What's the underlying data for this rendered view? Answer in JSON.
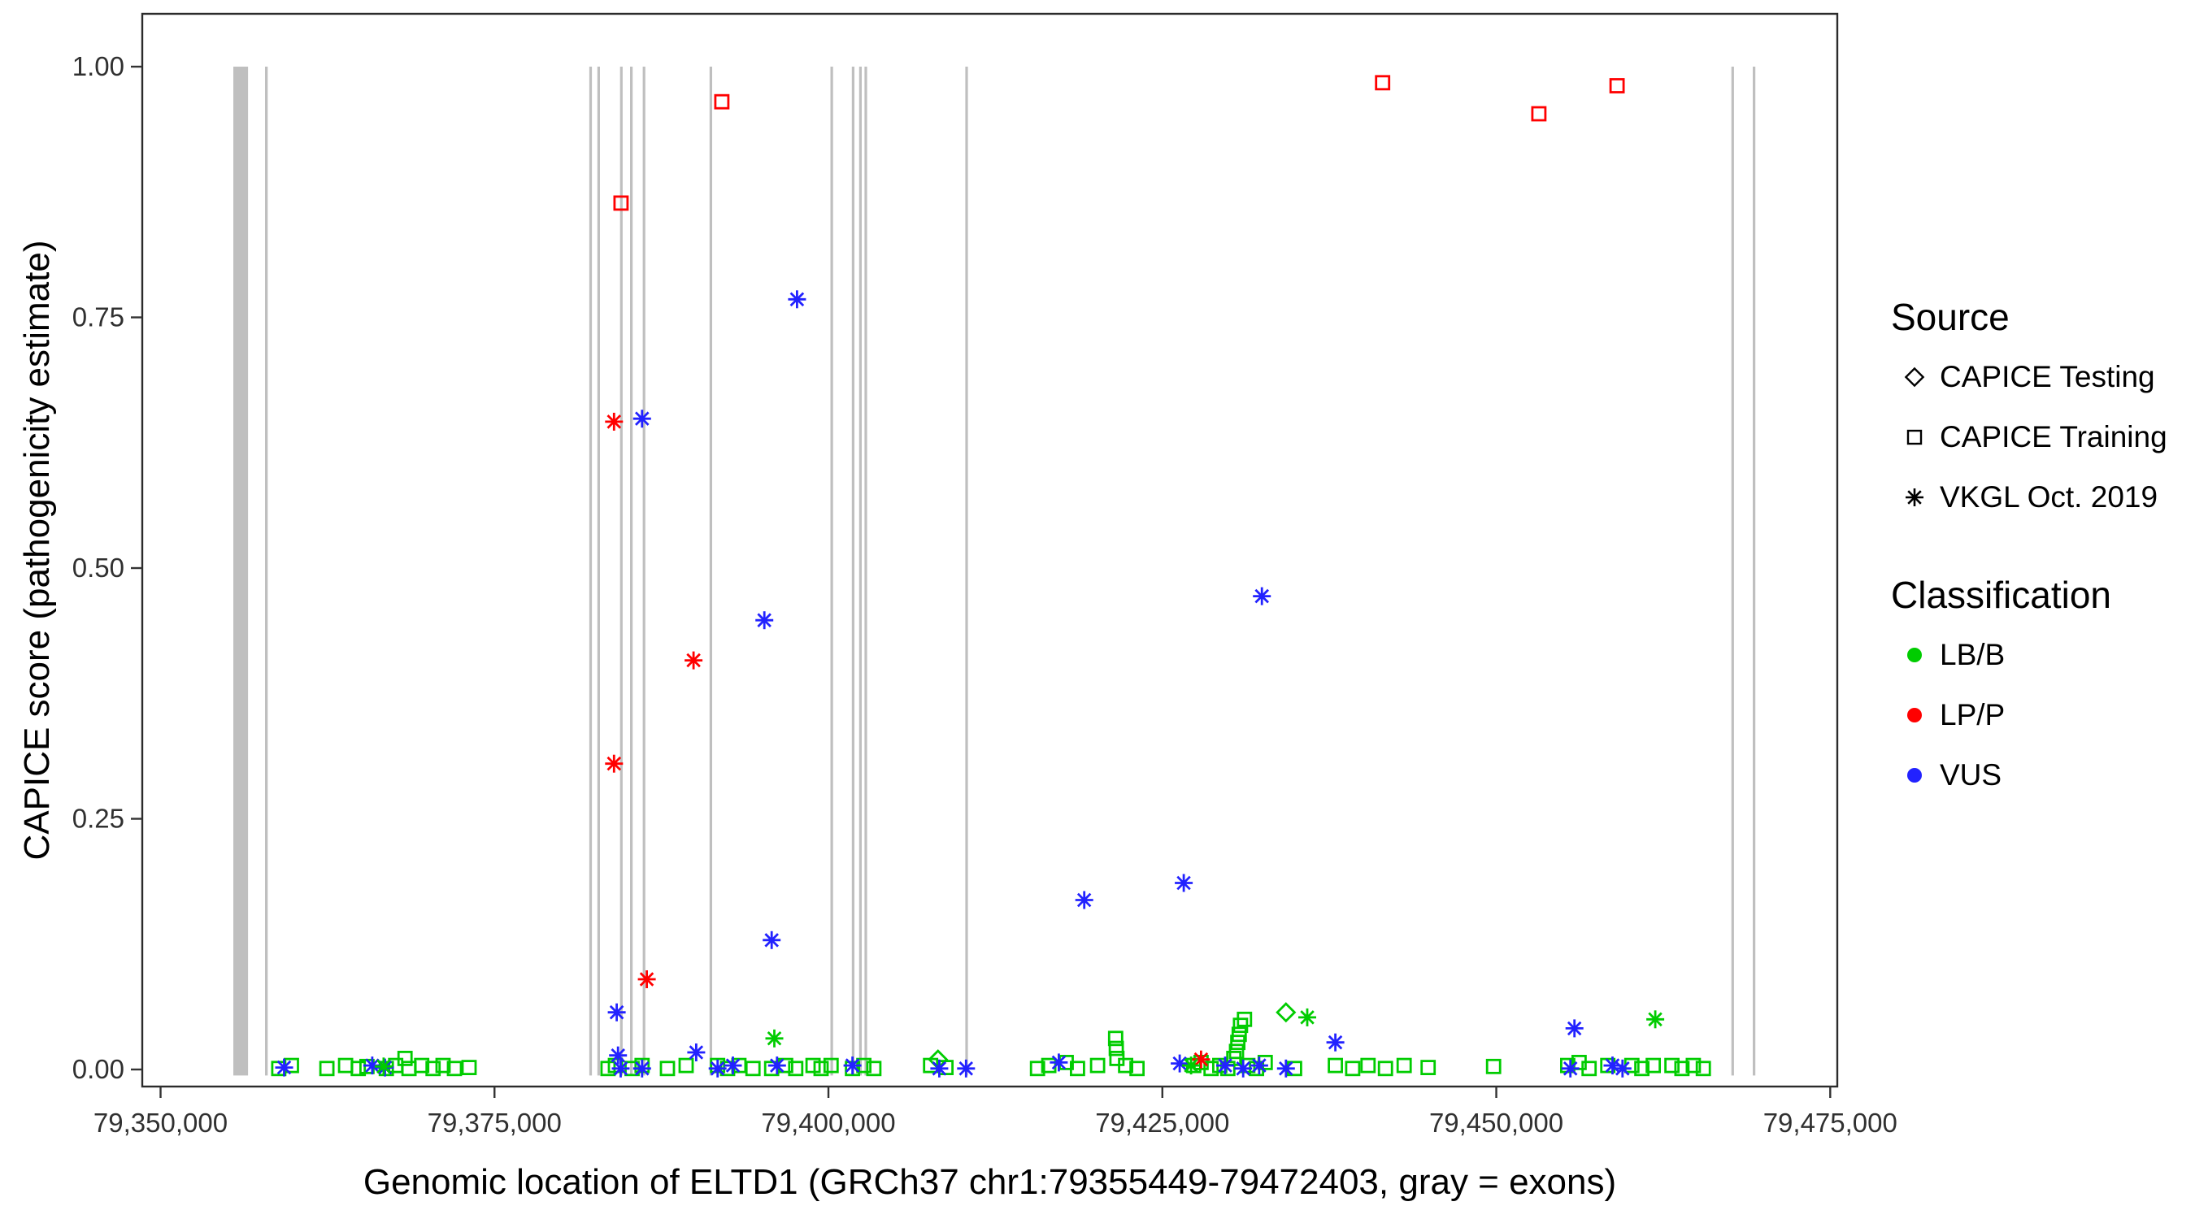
{
  "figure": {
    "xlabel": "Genomic location of ELTD1 (GRCh37 chr1:79355449-79472403, gray = exons)",
    "ylabel": "CAPICE score (pathogenicity estimate)"
  },
  "legend": {
    "source_title": "Source",
    "source_items": [
      {
        "shape": "diamond",
        "label": "CAPICE Testing"
      },
      {
        "shape": "square",
        "label": "CAPICE Training"
      },
      {
        "shape": "asterisk",
        "label": "VKGL Oct. 2019"
      }
    ],
    "classification_title": "Classification",
    "classification_items": [
      {
        "color": "#00CC00",
        "label": "LB/B"
      },
      {
        "color": "#FF0000",
        "label": "LP/P"
      },
      {
        "color": "#2222FF",
        "label": "VUS"
      }
    ]
  },
  "chart_data": {
    "type": "scatter",
    "title": "",
    "xlabel": "Genomic location of ELTD1 (GRCh37 chr1:79355449-79472403, gray = exons)",
    "ylabel": "CAPICE score (pathogenicity estimate)",
    "xlim": [
      79348630,
      79475530
    ],
    "ylim": [
      -0.017,
      1.0527
    ],
    "grid": false,
    "legend_position": "right",
    "exon_color": "#BFBFBF",
    "x_ticks": [
      {
        "value": 79350000,
        "label": "79,350,000"
      },
      {
        "value": 79375000,
        "label": "79,375,000"
      },
      {
        "value": 79400000,
        "label": "79,400,000"
      },
      {
        "value": 79425000,
        "label": "79,425,000"
      },
      {
        "value": 79450000,
        "label": "79,450,000"
      },
      {
        "value": 79475000,
        "label": "79,475,000"
      }
    ],
    "y_ticks": [
      {
        "value": 0.0,
        "label": "0.00"
      },
      {
        "value": 0.25,
        "label": "0.25"
      },
      {
        "value": 0.5,
        "label": "0.50"
      },
      {
        "value": 0.75,
        "label": "0.75"
      },
      {
        "value": 1.0,
        "label": "1.00"
      }
    ],
    "exons": [
      [
        79355449,
        79356550
      ],
      [
        79357820,
        79358020
      ],
      [
        79382100,
        79382260
      ],
      [
        79382700,
        79382860
      ],
      [
        79384400,
        79384560
      ],
      [
        79385150,
        79385310
      ],
      [
        79386100,
        79386260
      ],
      [
        79391100,
        79391260
      ],
      [
        79400150,
        79400310
      ],
      [
        79401750,
        79401910
      ],
      [
        79402300,
        79402460
      ],
      [
        79402700,
        79402860
      ],
      [
        79410250,
        79410410
      ],
      [
        79467600,
        79467760
      ],
      [
        79469200,
        79469360
      ]
    ],
    "colors": {
      "LB/B": "#00CC00",
      "LP/P": "#FF0000",
      "VUS": "#2222FF"
    },
    "shapes": {
      "CAPICE Testing": "diamond",
      "CAPICE Training": "square",
      "VKGL Oct. 2019": "asterisk"
    },
    "series": [
      {
        "name": "CAPICE Training / LB/B",
        "source": "CAPICE Training",
        "classification": "LB/B",
        "shape": "square",
        "points": [
          [
            79358850,
            0.001
          ],
          [
            79359800,
            0.004
          ],
          [
            79362450,
            0.001
          ],
          [
            79363850,
            0.004
          ],
          [
            79364800,
            0.001
          ],
          [
            79365450,
            0.003
          ],
          [
            79366900,
            0.001
          ],
          [
            79367600,
            0.004
          ],
          [
            79368300,
            0.011
          ],
          [
            79368600,
            0.001
          ],
          [
            79369550,
            0.004
          ],
          [
            79370400,
            0.001
          ],
          [
            79371150,
            0.004
          ],
          [
            79372000,
            0.001
          ],
          [
            79373100,
            0.002
          ],
          [
            79383500,
            0.001
          ],
          [
            79384050,
            0.004
          ],
          [
            79385300,
            0.001
          ],
          [
            79386050,
            0.004
          ],
          [
            79387950,
            0.001
          ],
          [
            79389350,
            0.004
          ],
          [
            79391700,
            0.004
          ],
          [
            79392450,
            0.001
          ],
          [
            79393300,
            0.004
          ],
          [
            79394350,
            0.001
          ],
          [
            79395750,
            0.001
          ],
          [
            79396800,
            0.004
          ],
          [
            79397550,
            0.001
          ],
          [
            79398850,
            0.004
          ],
          [
            79399450,
            0.001
          ],
          [
            79400200,
            0.004
          ],
          [
            79401800,
            0.001
          ],
          [
            79402650,
            0.004
          ],
          [
            79403400,
            0.001
          ],
          [
            79407650,
            0.004
          ],
          [
            79408800,
            0.002
          ],
          [
            79415650,
            0.001
          ],
          [
            79416500,
            0.004
          ],
          [
            79417800,
            0.007
          ],
          [
            79418650,
            0.001
          ],
          [
            79420150,
            0.004
          ],
          [
            79421500,
            0.031
          ],
          [
            79421550,
            0.021
          ],
          [
            79421600,
            0.011
          ],
          [
            79422250,
            0.004
          ],
          [
            79423100,
            0.001
          ],
          [
            79427350,
            0.004
          ],
          [
            79427900,
            0.007
          ],
          [
            79428650,
            0.001
          ],
          [
            79429300,
            0.004
          ],
          [
            79429900,
            0.001
          ],
          [
            79430350,
            0.011
          ],
          [
            79430550,
            0.018
          ],
          [
            79430650,
            0.027
          ],
          [
            79430750,
            0.035
          ],
          [
            79430850,
            0.044
          ],
          [
            79431150,
            0.05
          ],
          [
            79431400,
            0.004
          ],
          [
            79432050,
            0.001
          ],
          [
            79432700,
            0.007
          ],
          [
            79434900,
            0.001
          ],
          [
            79437950,
            0.004
          ],
          [
            79439250,
            0.001
          ],
          [
            79440400,
            0.004
          ],
          [
            79441700,
            0.001
          ],
          [
            79443100,
            0.004
          ],
          [
            79444900,
            0.002
          ],
          [
            79449800,
            0.003
          ],
          [
            79455350,
            0.004
          ],
          [
            79456200,
            0.007
          ],
          [
            79456950,
            0.001
          ],
          [
            79458350,
            0.004
          ],
          [
            79460150,
            0.004
          ],
          [
            79460900,
            0.001
          ],
          [
            79461750,
            0.004
          ],
          [
            79463150,
            0.004
          ],
          [
            79463900,
            0.001
          ],
          [
            79464750,
            0.004
          ],
          [
            79465500,
            0.001
          ]
        ]
      },
      {
        "name": "CAPICE Training / LP/P",
        "source": "CAPICE Training",
        "classification": "LP/P",
        "shape": "square",
        "points": [
          [
            79392020,
            0.965
          ],
          [
            79384470,
            0.864
          ],
          [
            79441490,
            0.984
          ],
          [
            79453190,
            0.953
          ],
          [
            79459040,
            0.981
          ]
        ]
      },
      {
        "name": "CAPICE Testing / LB/B",
        "source": "CAPICE Testing",
        "classification": "LB/B",
        "shape": "diamond",
        "points": [
          [
            79434250,
            0.057
          ],
          [
            79408200,
            0.01
          ]
        ]
      },
      {
        "name": "VKGL Oct. 2019 / LP/P",
        "source": "VKGL Oct. 2019",
        "classification": "LP/P",
        "shape": "asterisk",
        "points": [
          [
            79383950,
            0.646
          ],
          [
            79383950,
            0.305
          ],
          [
            79389900,
            0.408
          ],
          [
            79386400,
            0.09
          ],
          [
            79427900,
            0.01
          ]
        ]
      },
      {
        "name": "VKGL Oct. 2019 / VUS",
        "source": "VKGL Oct. 2019",
        "classification": "VUS",
        "shape": "asterisk",
        "points": [
          [
            79397650,
            0.768
          ],
          [
            79386050,
            0.649
          ],
          [
            79395200,
            0.448
          ],
          [
            79432450,
            0.472
          ],
          [
            79395750,
            0.129
          ],
          [
            79419150,
            0.169
          ],
          [
            79426600,
            0.186
          ],
          [
            79384150,
            0.057
          ],
          [
            79455850,
            0.041
          ],
          [
            79437950,
            0.027
          ],
          [
            79359250,
            0.002
          ],
          [
            79365850,
            0.004
          ],
          [
            79366800,
            0.002
          ],
          [
            79384250,
            0.014
          ],
          [
            79384450,
            0.001
          ],
          [
            79386050,
            0.001
          ],
          [
            79390100,
            0.017
          ],
          [
            79391700,
            0.001
          ],
          [
            79392850,
            0.004
          ],
          [
            79396150,
            0.004
          ],
          [
            79401800,
            0.004
          ],
          [
            79408300,
            0.001
          ],
          [
            79410300,
            0.001
          ],
          [
            79417250,
            0.007
          ],
          [
            79426300,
            0.006
          ],
          [
            79429700,
            0.004
          ],
          [
            79431050,
            0.001
          ],
          [
            79432250,
            0.004
          ],
          [
            79434250,
            0.001
          ],
          [
            79455550,
            0.001
          ],
          [
            79458700,
            0.004
          ],
          [
            79459450,
            0.001
          ]
        ]
      },
      {
        "name": "VKGL Oct. 2019 / LB/B",
        "source": "VKGL Oct. 2019",
        "classification": "LB/B",
        "shape": "asterisk",
        "points": [
          [
            79366700,
            0.003
          ],
          [
            79395950,
            0.031
          ],
          [
            79435850,
            0.052
          ],
          [
            79461900,
            0.05
          ],
          [
            79427150,
            0.004
          ]
        ]
      }
    ]
  }
}
